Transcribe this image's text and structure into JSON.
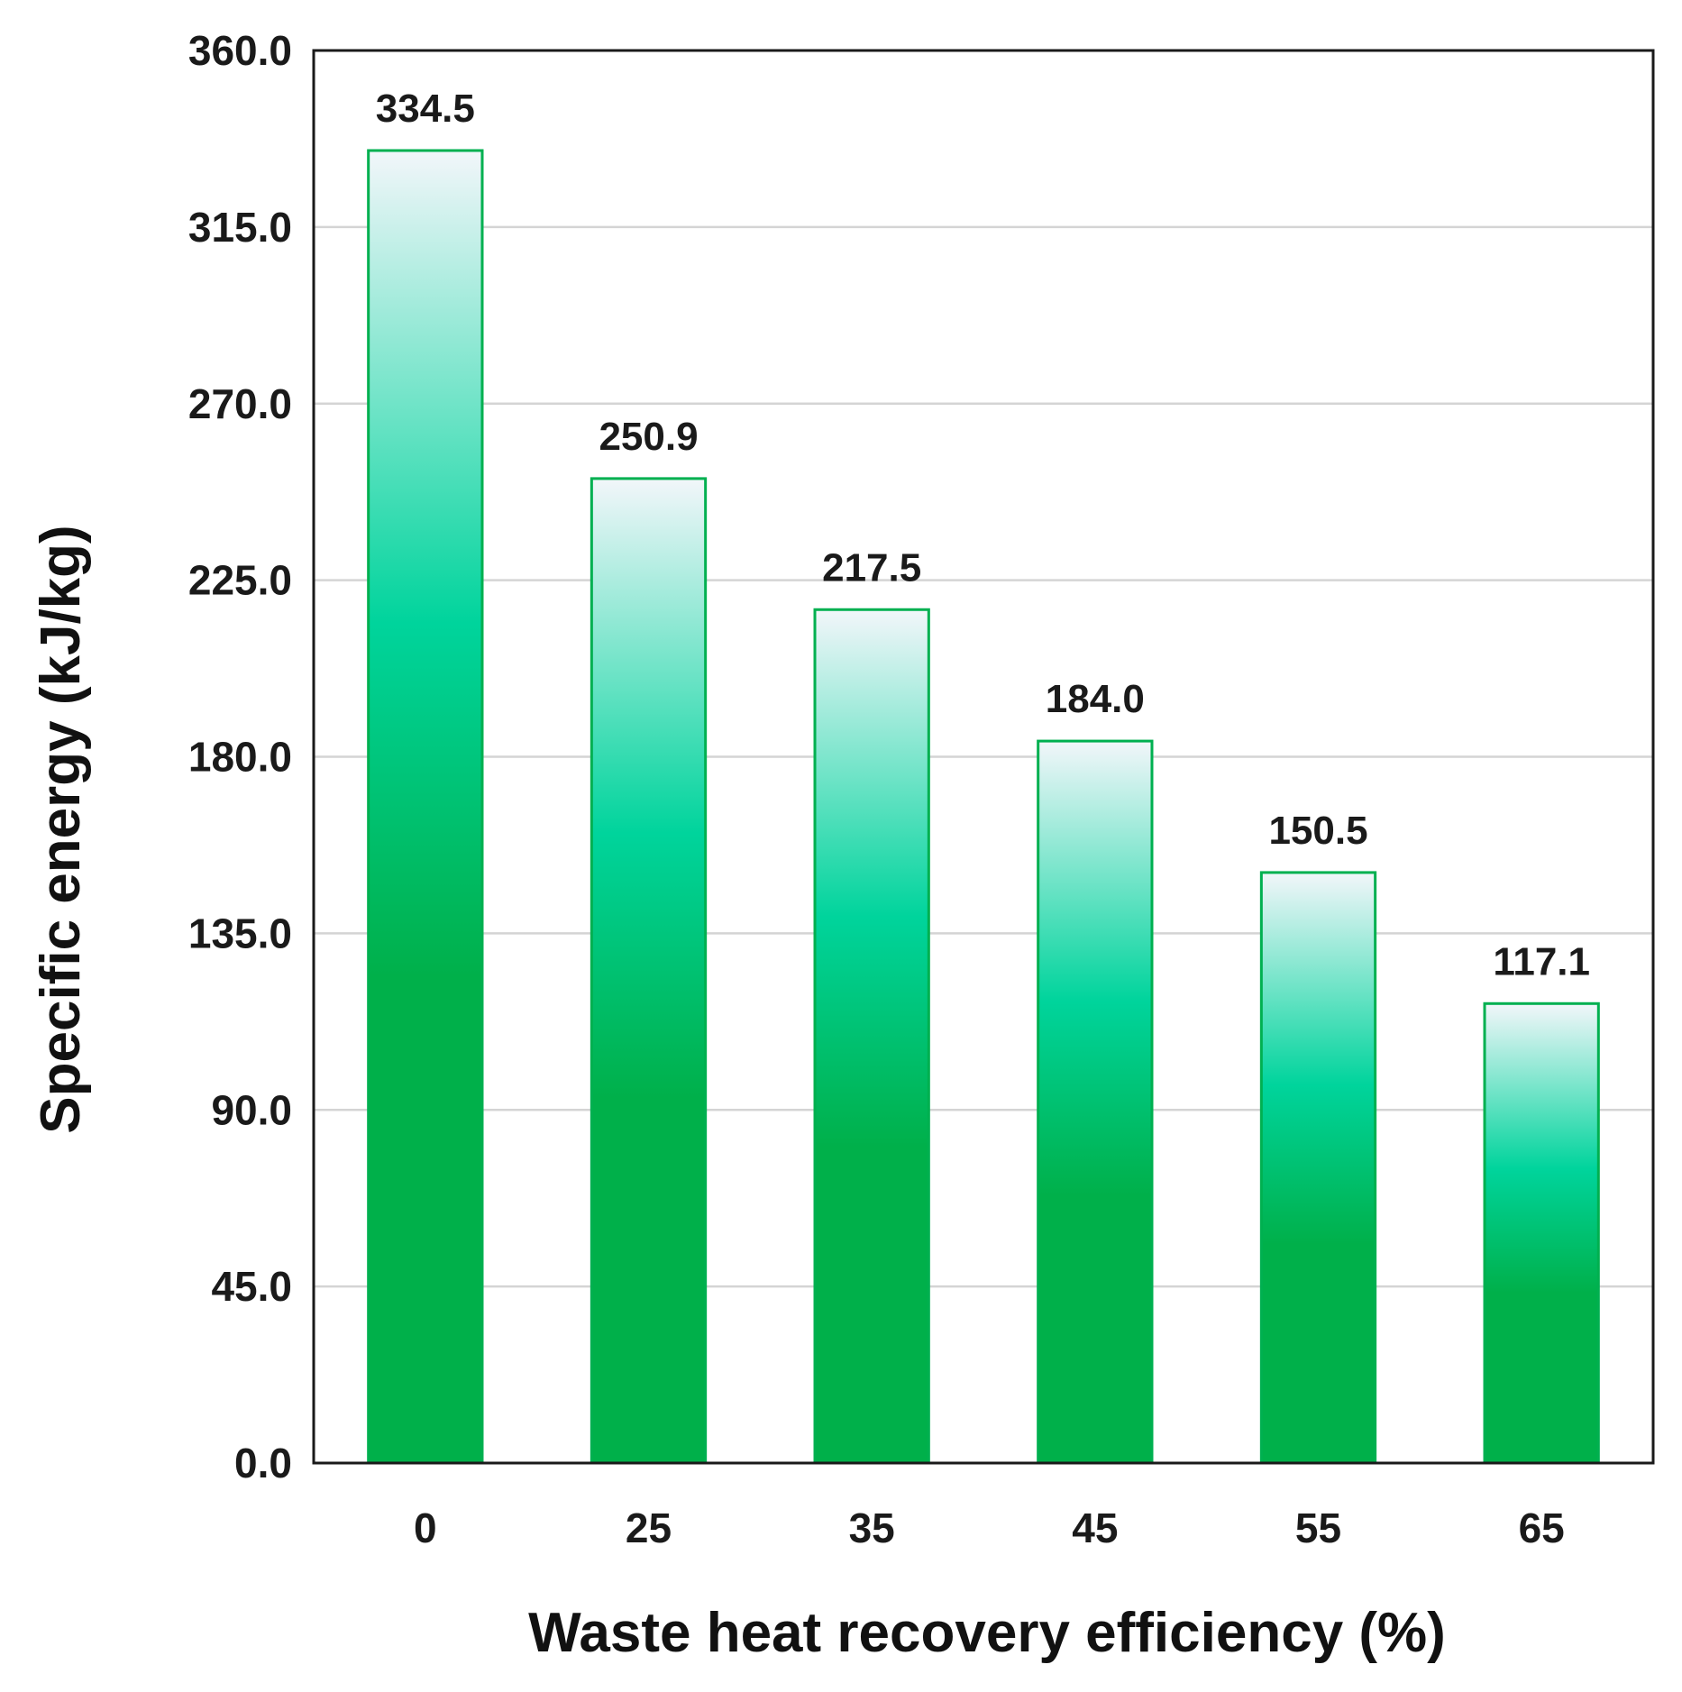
{
  "chart_data": {
    "type": "bar",
    "categories": [
      "0",
      "25",
      "35",
      "45",
      "55",
      "65"
    ],
    "values": [
      334.5,
      250.9,
      217.5,
      184.0,
      150.5,
      117.1
    ],
    "value_labels": [
      "334.5",
      "250.9",
      "217.5",
      "184.0",
      "150.5",
      "117.1"
    ],
    "title": "",
    "xlabel": "Waste heat recovery efficiency (%)",
    "ylabel": "Specific energy (kJ/kg)",
    "ylim": [
      0,
      360
    ],
    "yticks": [
      0,
      45,
      90,
      135,
      180,
      225,
      270,
      315,
      360
    ],
    "ytick_labels": [
      "0.0",
      "45.0",
      "90.0",
      "135.0",
      "180.0",
      "225.0",
      "270.0",
      "315.0",
      "360.0"
    ],
    "grid": true,
    "legend": "none",
    "colors": {
      "bar_outline": "#00b050",
      "bar_bottom": "#00b04a",
      "bar_mid": "#00d49c",
      "bar_top": "#f2f6fa",
      "grid": "#d4d4d4",
      "axis": "#1a1a1a"
    }
  }
}
